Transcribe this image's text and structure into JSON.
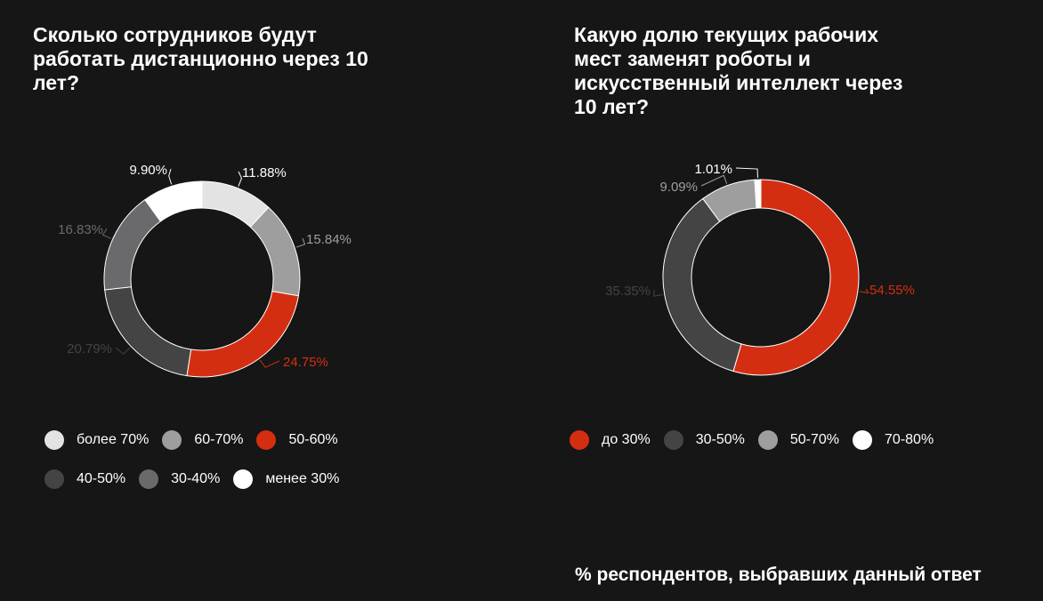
{
  "footer_note": "% респондентов, выбравших данный ответ",
  "chart_data": [
    {
      "type": "pie",
      "title": "Сколько сотрудников будут работать дистанционно через 10 лет?",
      "categories": [
        "более 70%",
        "60-70%",
        "50-60%",
        "40-50%",
        "30-40%",
        "менее 30%"
      ],
      "values": [
        11.88,
        15.84,
        24.75,
        20.79,
        16.83,
        9.9
      ],
      "data_labels": [
        "11.88%",
        "15.84%",
        "24.75%",
        "20.79%",
        "16.83%",
        "9.90%"
      ],
      "colors": [
        "#e3e3e3",
        "#9e9e9e",
        "#d42e12",
        "#444444",
        "#6a6a6d",
        "#ffffff"
      ],
      "label_colors": [
        "#ffffff",
        "#9e9e9e",
        "#d42e12",
        "#444444",
        "#6a6a6d",
        "#ffffff"
      ],
      "legend": {
        "placement": "bottom",
        "order": [
          "более 70%",
          "60-70%",
          "50-60%",
          "40-50%",
          "30-40%",
          "менее 30%"
        ]
      }
    },
    {
      "type": "pie",
      "title": "Какую долю текущих рабочих мест заменят роботы и искусственный интеллект через 10 лет?",
      "categories": [
        "до 30%",
        "30-50%",
        "50-70%",
        "70-80%"
      ],
      "values": [
        54.55,
        35.35,
        9.09,
        1.01
      ],
      "data_labels": [
        "54.55%",
        "35.35%",
        "9.09%",
        "1.01%"
      ],
      "colors": [
        "#d42e12",
        "#444444",
        "#9e9e9e",
        "#ffffff"
      ],
      "label_colors": [
        "#d42e12",
        "#444444",
        "#9e9e9e",
        "#ffffff"
      ],
      "legend": {
        "placement": "bottom",
        "order": [
          "до 30%",
          "30-50%",
          "50-70%",
          "70-80%"
        ]
      }
    }
  ]
}
